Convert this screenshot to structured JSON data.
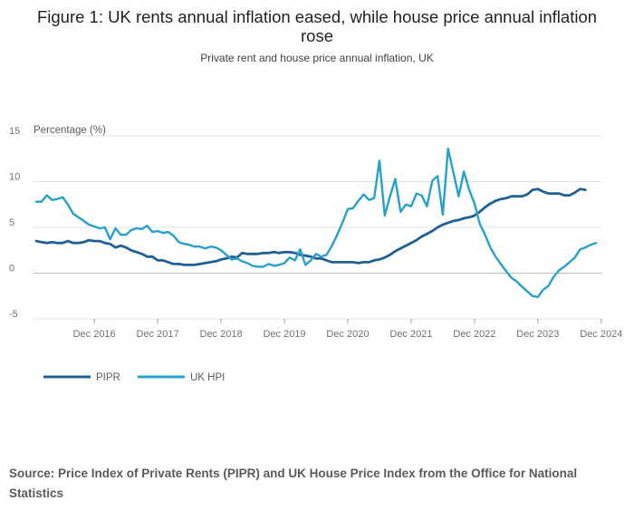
{
  "title": "Figure 1: UK rents annual inflation eased, while house price annual inflation rose",
  "subtitle": "Private rent and house price annual inflation, UK",
  "source": "Source: Price Index of Private Rents (PIPR) and UK House Price Index from the Office for National Statistics",
  "colors": {
    "pipr": "#206095",
    "hpi": "#27a0cc",
    "grid": "#e2e2e2",
    "zero": "#bebebe",
    "text": "#707070"
  },
  "chart_data": {
    "type": "line",
    "title": "Figure 1: UK rents annual inflation eased, while house price annual inflation rose",
    "ylabel": "Percentage (%)",
    "ylim": [
      -5,
      15
    ],
    "yticks": [
      15,
      10,
      5,
      0,
      -5
    ],
    "x_start": "Jan 2016",
    "x_end": "Dec 2024",
    "xticks": [
      {
        "label": "Dec 2016",
        "month": 11
      },
      {
        "label": "Dec 2017",
        "month": 23
      },
      {
        "label": "Dec 2018",
        "month": 35
      },
      {
        "label": "Dec 2019",
        "month": 47
      },
      {
        "label": "Dec 2020",
        "month": 59
      },
      {
        "label": "Dec 2021",
        "month": 71
      },
      {
        "label": "Dec 2022",
        "month": 83
      },
      {
        "label": "Dec 2023",
        "month": 95
      },
      {
        "label": "Dec 2024",
        "month": 107
      }
    ],
    "legend": "bottom-left",
    "series": [
      {
        "name": "PIPR",
        "values": [
          3.5,
          3.4,
          3.3,
          3.4,
          3.3,
          3.3,
          3.5,
          3.3,
          3.3,
          3.4,
          3.6,
          3.5,
          3.5,
          3.3,
          3.2,
          2.8,
          3.0,
          2.8,
          2.5,
          2.3,
          2.1,
          1.8,
          1.8,
          1.4,
          1.4,
          1.2,
          1.0,
          1.0,
          0.9,
          0.9,
          0.9,
          1.0,
          1.1,
          1.2,
          1.3,
          1.5,
          1.6,
          1.8,
          1.7,
          2.2,
          2.1,
          2.1,
          2.1,
          2.2,
          2.2,
          2.3,
          2.2,
          2.3,
          2.3,
          2.2,
          2.0,
          1.9,
          1.8,
          1.6,
          1.6,
          1.4,
          1.2,
          1.2,
          1.2,
          1.2,
          1.2,
          1.1,
          1.2,
          1.2,
          1.4,
          1.5,
          1.7,
          2.0,
          2.4,
          2.7,
          3.0,
          3.3,
          3.6,
          4.0,
          4.3,
          4.6,
          5.0,
          5.3,
          5.5,
          5.7,
          5.8,
          6.0,
          6.1,
          6.3,
          6.7,
          7.2,
          7.6,
          7.9,
          8.1,
          8.2,
          8.4,
          8.4,
          8.4,
          8.6,
          9.1,
          9.2,
          8.9,
          8.7,
          8.7,
          8.7,
          8.5,
          8.5,
          8.8,
          9.2,
          9.1
        ]
      },
      {
        "name": "UK HPI",
        "values": [
          7.8,
          7.8,
          8.5,
          8.0,
          8.1,
          8.3,
          7.5,
          6.5,
          6.1,
          5.7,
          5.3,
          5.1,
          4.9,
          5.0,
          3.7,
          4.9,
          4.2,
          4.2,
          4.7,
          4.9,
          4.8,
          5.2,
          4.5,
          4.6,
          4.4,
          4.5,
          4.1,
          3.4,
          3.2,
          3.1,
          2.9,
          2.9,
          2.7,
          2.9,
          2.8,
          2.5,
          2.0,
          1.5,
          1.6,
          1.3,
          1.1,
          0.8,
          0.7,
          0.7,
          1.0,
          0.8,
          0.9,
          1.1,
          1.7,
          1.4,
          2.6,
          0.9,
          1.4,
          2.1,
          1.8,
          2.0,
          3.0,
          4.2,
          5.5,
          7.0,
          7.1,
          7.9,
          8.6,
          8.0,
          8.2,
          12.3,
          6.3,
          8.4,
          10.3,
          6.7,
          7.5,
          7.3,
          8.7,
          8.5,
          7.3,
          10.1,
          10.6,
          6.4,
          13.6,
          11.0,
          8.4,
          11.1,
          9.1,
          7.6,
          5.4,
          4.2,
          2.8,
          1.8,
          1.0,
          0.2,
          -0.5,
          -0.9,
          -1.5,
          -2.0,
          -2.5,
          -2.6,
          -1.8,
          -1.4,
          -0.4,
          0.3,
          0.7,
          1.2,
          1.7,
          2.6,
          2.8,
          3.1,
          3.3
        ]
      }
    ]
  }
}
